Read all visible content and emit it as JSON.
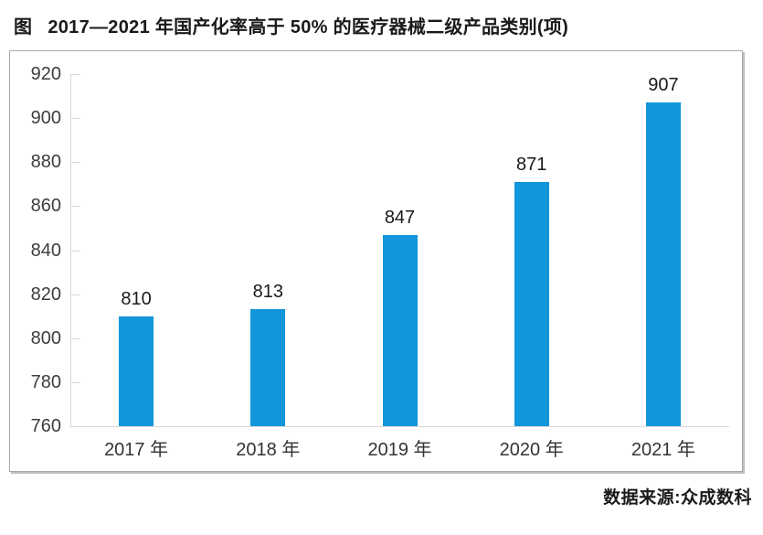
{
  "header": {
    "prefix": "图",
    "title": "2017—2021 年国产化率高于 50% 的医疗器械二级产品类别(项)"
  },
  "chart_data": {
    "type": "bar",
    "title": "2017—2021 年国产化率高于 50% 的医疗器械二级产品类别(项)",
    "categories": [
      "2017 年",
      "2018 年",
      "2019 年",
      "2020 年",
      "2021 年"
    ],
    "values": [
      810,
      813,
      847,
      871,
      907
    ],
    "xlabel": "",
    "ylabel": "",
    "ylim": [
      760,
      920
    ],
    "ytick_step": 20,
    "grid": false,
    "legend": "none",
    "data_labels": true,
    "bar_color": "#1296db"
  },
  "footer": {
    "source": "数据来源:众成数科"
  },
  "colors": {
    "bar": "#1296db",
    "axis": "#d9d9d9",
    "frame_border": "#a8a8a8",
    "text": "#1a1a1a",
    "tick_text": "#3d3d3d"
  }
}
